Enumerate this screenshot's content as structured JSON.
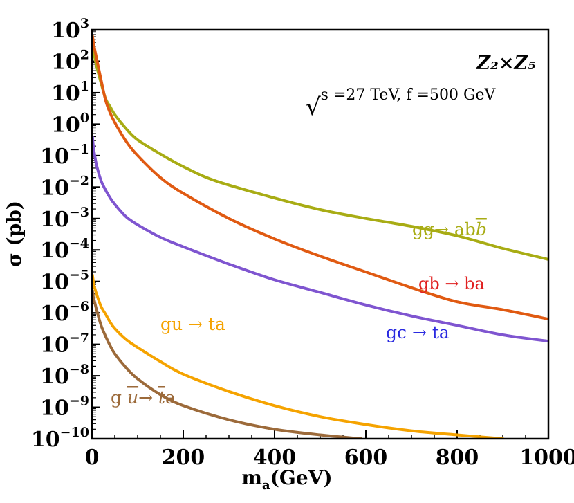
{
  "chart_data": {
    "type": "line",
    "title": "",
    "xlabel": "m",
    "xlabel_sub": "a",
    "xlabel_unit": "(GeV)",
    "ylabel": "σ (pb)",
    "xlim": [
      0,
      1000
    ],
    "ylim_log10": [
      -10,
      3
    ],
    "y_scale": "log",
    "x_ticks": [
      0,
      200,
      400,
      600,
      800,
      1000
    ],
    "x_tick_labels": [
      "0",
      "200",
      "400",
      "600",
      "800",
      "1000"
    ],
    "y_tick_exponents": [
      3,
      2,
      1,
      0,
      -1,
      -2,
      -3,
      -4,
      -5,
      -6,
      -7,
      -8,
      -9,
      -10
    ],
    "y_tick_labels": [
      "3",
      "2",
      "1",
      "0",
      "−1",
      "−2",
      "−3",
      "−4",
      "−5",
      "−6",
      "−7",
      "−8",
      "−9",
      "−10"
    ],
    "y_tick_base": "10",
    "model_label": "Z₂×Z₅",
    "energy_label_sqrt": "√",
    "energy_label": "s =27 TeV, f =500 GeV",
    "series": [
      {
        "name": "gg→ ab",
        "name_bar": "b",
        "color": "#a8ac14",
        "points": [
          [
            1,
            2.5
          ],
          [
            5,
            2.2
          ],
          [
            10,
            1.85
          ],
          [
            20,
            1.3
          ],
          [
            30,
            0.8
          ],
          [
            40,
            0.55
          ],
          [
            50,
            0.3
          ],
          [
            75,
            -0.15
          ],
          [
            100,
            -0.5
          ],
          [
            150,
            -0.95
          ],
          [
            200,
            -1.35
          ],
          [
            270,
            -1.8
          ],
          [
            400,
            -2.35
          ],
          [
            500,
            -2.72
          ],
          [
            600,
            -3.0
          ],
          [
            700,
            -3.25
          ],
          [
            800,
            -3.55
          ],
          [
            900,
            -3.95
          ],
          [
            1000,
            -4.3
          ]
        ]
      },
      {
        "name": "gb → ba",
        "color": "#e05a12",
        "label_color": "#e02020",
        "points": [
          [
            1,
            2.8
          ],
          [
            5,
            2.45
          ],
          [
            10,
            2.1
          ],
          [
            20,
            1.4
          ],
          [
            30,
            0.75
          ],
          [
            40,
            0.35
          ],
          [
            50,
            0.05
          ],
          [
            75,
            -0.55
          ],
          [
            100,
            -1.0
          ],
          [
            150,
            -1.7
          ],
          [
            200,
            -2.2
          ],
          [
            300,
            -3.0
          ],
          [
            400,
            -3.65
          ],
          [
            500,
            -4.2
          ],
          [
            600,
            -4.7
          ],
          [
            700,
            -5.2
          ],
          [
            800,
            -5.65
          ],
          [
            900,
            -5.9
          ],
          [
            1000,
            -6.2
          ]
        ]
      },
      {
        "name": "gc → ta",
        "color": "#7f55d0",
        "label_color": "#2a2ae0",
        "points": [
          [
            1,
            -0.4
          ],
          [
            3,
            -0.7
          ],
          [
            5,
            -0.9
          ],
          [
            10,
            -1.3
          ],
          [
            20,
            -1.8
          ],
          [
            30,
            -2.1
          ],
          [
            40,
            -2.35
          ],
          [
            50,
            -2.55
          ],
          [
            75,
            -2.95
          ],
          [
            100,
            -3.2
          ],
          [
            150,
            -3.6
          ],
          [
            200,
            -3.9
          ],
          [
            300,
            -4.45
          ],
          [
            400,
            -4.95
          ],
          [
            500,
            -5.35
          ],
          [
            600,
            -5.75
          ],
          [
            700,
            -6.1
          ],
          [
            800,
            -6.4
          ],
          [
            900,
            -6.7
          ],
          [
            1000,
            -6.9
          ]
        ]
      },
      {
        "name": "gu → ta",
        "color": "#f5a300",
        "points": [
          [
            1,
            -4.8
          ],
          [
            3,
            -5.0
          ],
          [
            5,
            -5.15
          ],
          [
            10,
            -5.4
          ],
          [
            20,
            -5.8
          ],
          [
            30,
            -6.05
          ],
          [
            40,
            -6.3
          ],
          [
            50,
            -6.5
          ],
          [
            75,
            -6.85
          ],
          [
            100,
            -7.1
          ],
          [
            150,
            -7.55
          ],
          [
            200,
            -7.95
          ],
          [
            300,
            -8.5
          ],
          [
            400,
            -8.95
          ],
          [
            500,
            -9.3
          ],
          [
            600,
            -9.55
          ],
          [
            700,
            -9.75
          ],
          [
            800,
            -9.88
          ],
          [
            900,
            -10.0
          ]
        ]
      },
      {
        "name": "g ",
        "name_bar": "u",
        "name_mid": "→ ",
        "name_bar2": "t",
        "name_end": "a",
        "color": "#9c6a3a",
        "points": [
          [
            1,
            -5.3
          ],
          [
            3,
            -5.5
          ],
          [
            5,
            -5.6
          ],
          [
            10,
            -5.9
          ],
          [
            20,
            -6.4
          ],
          [
            30,
            -6.75
          ],
          [
            40,
            -7.05
          ],
          [
            50,
            -7.3
          ],
          [
            75,
            -7.75
          ],
          [
            100,
            -8.1
          ],
          [
            150,
            -8.6
          ],
          [
            200,
            -8.95
          ],
          [
            300,
            -9.4
          ],
          [
            400,
            -9.7
          ],
          [
            500,
            -9.88
          ],
          [
            590,
            -10.0
          ]
        ]
      }
    ]
  }
}
